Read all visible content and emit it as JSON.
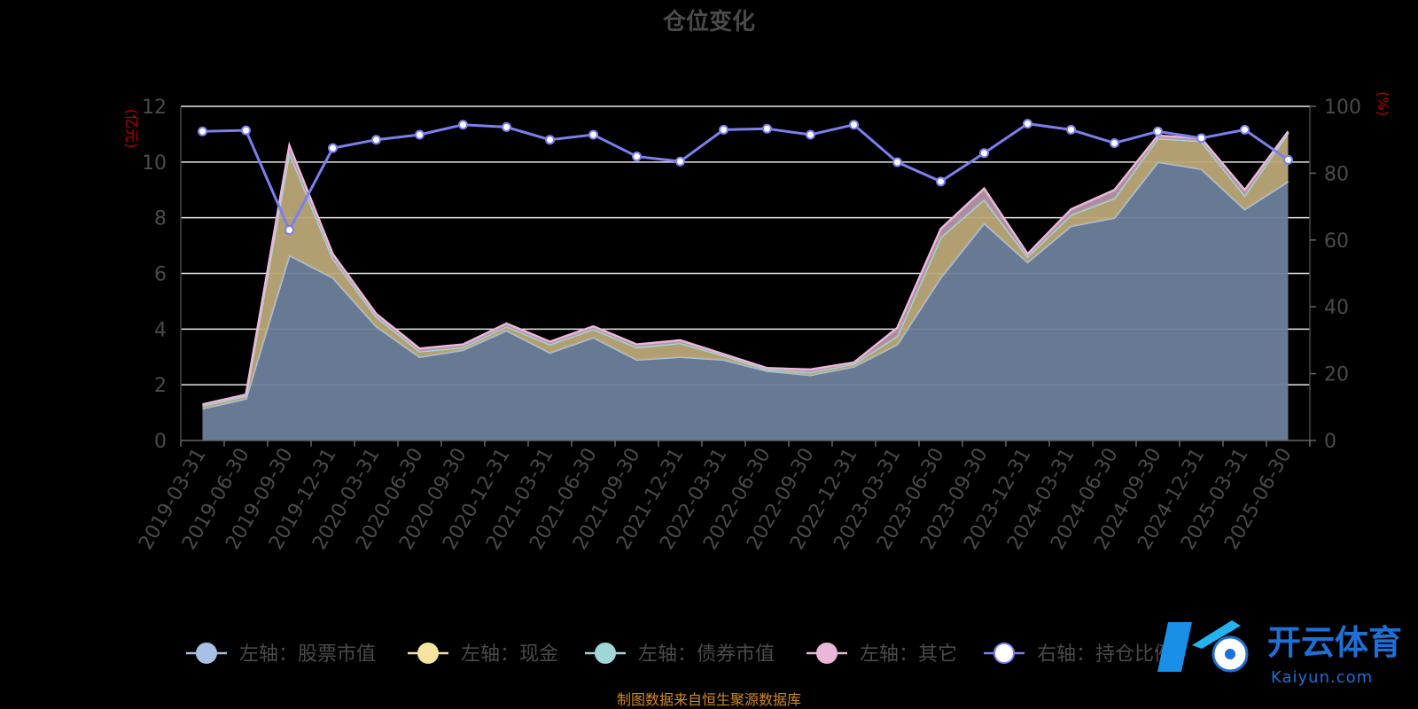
{
  "chart_data": {
    "type": "area",
    "title": "仓位变化",
    "left_unit": "(亿元)",
    "right_unit": "(%)",
    "ylim_left": [
      0,
      12
    ],
    "ylim_right": [
      0,
      100
    ],
    "yticks_left": [
      "0",
      "2",
      "4",
      "6",
      "8",
      "10",
      "12"
    ],
    "yticks_right": [
      "0",
      "20",
      "40",
      "60",
      "80",
      "100"
    ],
    "grid": true,
    "legend_position": "bottom",
    "categories": [
      "2019-03-31",
      "2019-06-30",
      "2019-09-30",
      "2019-12-31",
      "2020-03-31",
      "2020-06-30",
      "2020-09-30",
      "2020-12-31",
      "2021-03-31",
      "2021-06-30",
      "2021-09-30",
      "2021-12-31",
      "2022-03-31",
      "2022-06-30",
      "2022-09-30",
      "2022-12-31",
      "2023-03-31",
      "2023-06-30",
      "2023-09-30",
      "2023-12-31",
      "2024-03-31",
      "2024-06-30",
      "2024-09-30",
      "2024-12-31",
      "2025-03-31",
      "2025-06-30"
    ],
    "series": [
      {
        "name": "左轴：股票市值",
        "axis": "left",
        "type": "area",
        "color": "#a8c0e4",
        "fill": "#6e7f9c",
        "values": [
          1.15,
          1.5,
          6.65,
          5.85,
          4.1,
          3.0,
          3.25,
          3.95,
          3.15,
          3.7,
          2.9,
          3.0,
          2.9,
          2.5,
          2.35,
          2.65,
          3.45,
          5.85,
          7.8,
          6.4,
          7.7,
          8.0,
          10.0,
          9.75,
          8.3,
          9.3
        ]
      },
      {
        "name": "左轴：现金",
        "axis": "left",
        "type": "area",
        "color": "#f6e3a0",
        "fill": "#bba877",
        "values": [
          0.1,
          0.1,
          3.7,
          0.7,
          0.35,
          0.2,
          0.1,
          0.15,
          0.3,
          0.3,
          0.45,
          0.5,
          0.15,
          0.05,
          0.1,
          0.1,
          0.3,
          1.45,
          0.85,
          0.2,
          0.4,
          0.7,
          0.85,
          1.0,
          0.5,
          1.75
        ]
      },
      {
        "name": "左轴：债券市值",
        "axis": "left",
        "type": "area",
        "color": "#9fd7d7",
        "fill": "#8fb8b8",
        "values": [
          0,
          0,
          0,
          0,
          0,
          0,
          0,
          0,
          0,
          0,
          0,
          0,
          0,
          0,
          0,
          0,
          0,
          0,
          0,
          0,
          0,
          0,
          0,
          0,
          0,
          0
        ]
      },
      {
        "name": "左轴：其它",
        "axis": "left",
        "type": "area",
        "color": "#eab7d9",
        "fill": "#b595a8",
        "values": [
          0.05,
          0.05,
          0.25,
          0.15,
          0.1,
          0.1,
          0.1,
          0.1,
          0.1,
          0.1,
          0.1,
          0.1,
          0.05,
          0.05,
          0.1,
          0.05,
          0.3,
          0.3,
          0.4,
          0.1,
          0.2,
          0.3,
          0.1,
          0.1,
          0.2,
          0.05
        ]
      },
      {
        "name": "右轴：持仓比例",
        "axis": "right",
        "type": "line",
        "color": "#7b7ff0",
        "values": [
          92.5,
          92.8,
          63,
          87.5,
          90,
          91.5,
          94.5,
          93.8,
          90,
          91.5,
          85,
          83.5,
          93,
          93.3,
          91.5,
          94.5,
          83.3,
          77.5,
          86,
          94.8,
          93,
          89,
          92.5,
          90.5,
          93,
          84
        ]
      }
    ]
  },
  "legend": [
    {
      "label": "左轴：股票市值",
      "color": "#a8c0e4"
    },
    {
      "label": "左轴：现金",
      "color": "#f6e3a0"
    },
    {
      "label": "左轴：债券市值",
      "color": "#9fd7d7"
    },
    {
      "label": "左轴：其它",
      "color": "#eab7d9"
    },
    {
      "label": "右轴：持仓比例",
      "color": "#ffffff",
      "stroke": "#7b7ff0"
    }
  ],
  "source_note": "制图数据来自恒生聚源数据库",
  "watermark": {
    "text_cn": "开云体育",
    "text_en": "Kaiyun.com"
  }
}
